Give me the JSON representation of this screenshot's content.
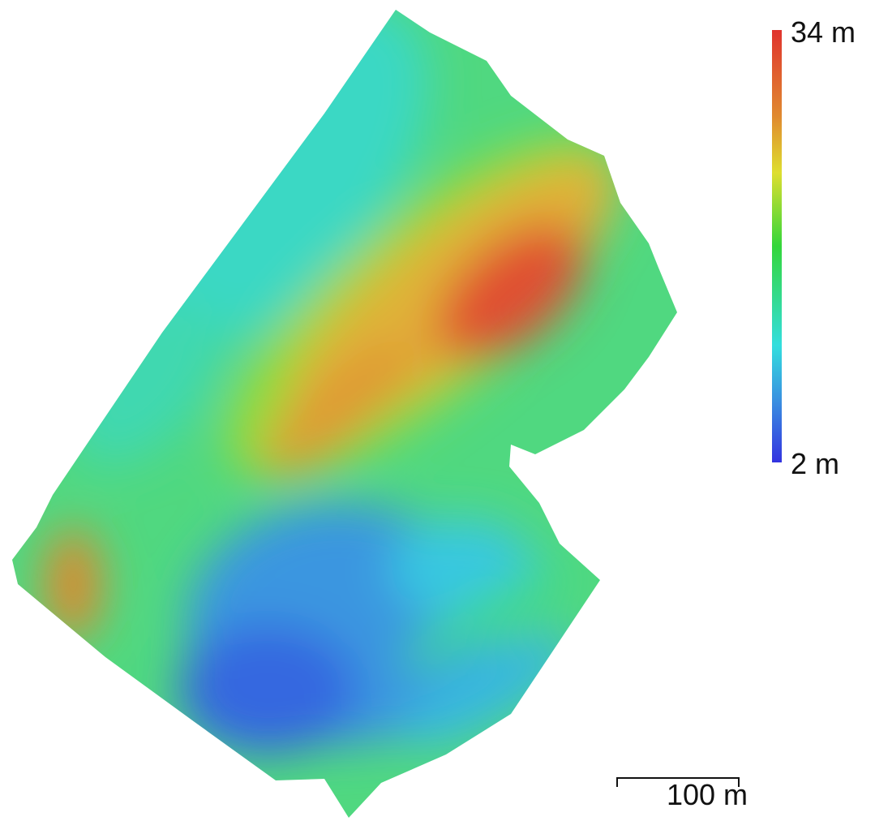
{
  "legend": {
    "max_label": "34 m",
    "min_label": "2 m"
  },
  "scale_bar": {
    "label": "100 m"
  }
}
